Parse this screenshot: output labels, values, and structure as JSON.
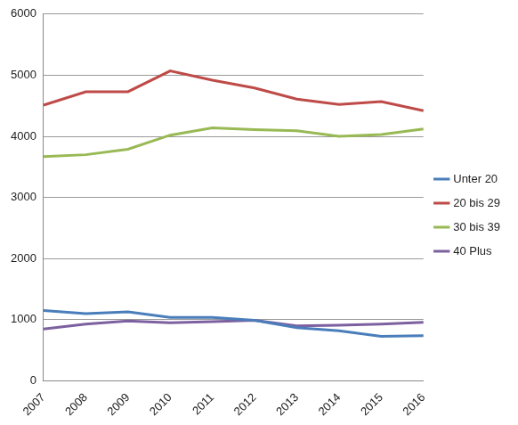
{
  "chart_data": {
    "type": "line",
    "categories": [
      "2007",
      "2008",
      "2009",
      "2010",
      "2011",
      "2012",
      "2013",
      "2014",
      "2015",
      "2016"
    ],
    "series": [
      {
        "name": "Unter 20",
        "color": "#4a7ebb",
        "values": [
          1150,
          1100,
          1130,
          1040,
          1040,
          990,
          870,
          820,
          730,
          740
        ]
      },
      {
        "name": "20 bis 29",
        "color": "#be4b48",
        "values": [
          4510,
          4730,
          4730,
          5070,
          4920,
          4790,
          4610,
          4520,
          4570,
          4420
        ]
      },
      {
        "name": "30 bis 39",
        "color": "#98b954",
        "values": [
          3670,
          3700,
          3790,
          4020,
          4140,
          4110,
          4090,
          4000,
          4030,
          4120
        ]
      },
      {
        "name": "40 Plus",
        "color": "#7d60a0",
        "values": [
          850,
          930,
          980,
          950,
          970,
          990,
          900,
          910,
          930,
          960
        ]
      }
    ],
    "ylim": [
      0,
      6000
    ],
    "yticks": [
      0,
      1000,
      2000,
      3000,
      4000,
      5000,
      6000
    ],
    "grid": true,
    "legend": "right"
  }
}
